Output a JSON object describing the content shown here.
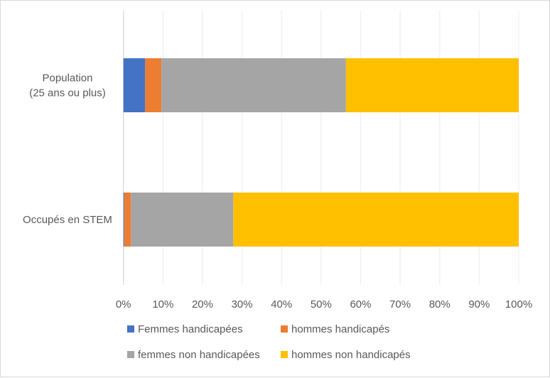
{
  "chart_data": {
    "type": "bar",
    "orientation": "horizontal",
    "stacked": "percent",
    "title": "",
    "xlabel": "",
    "ylabel": "",
    "categories": [
      [
        "Population",
        "(25 ans ou plus)"
      ],
      [
        "Occupés en STEM"
      ]
    ],
    "series": [
      {
        "name": "Femmes handicapées",
        "color": "#4472C4",
        "values": [
          5.5,
          0.2
        ]
      },
      {
        "name": "hommes handicapés",
        "color": "#ED7D31",
        "values": [
          4.1,
          1.7
        ]
      },
      {
        "name": "femmes non handicapées",
        "color": "#A5A5A5",
        "values": [
          46.7,
          25.9
        ]
      },
      {
        "name": "hommes non handicapés",
        "color": "#FFC000",
        "values": [
          43.7,
          72.2
        ]
      }
    ],
    "xlim": [
      0,
      100
    ],
    "xticks": [
      "0%",
      "10%",
      "20%",
      "30%",
      "40%",
      "50%",
      "60%",
      "70%",
      "80%",
      "90%",
      "100%"
    ],
    "grid": true,
    "legend_position": "bottom"
  }
}
